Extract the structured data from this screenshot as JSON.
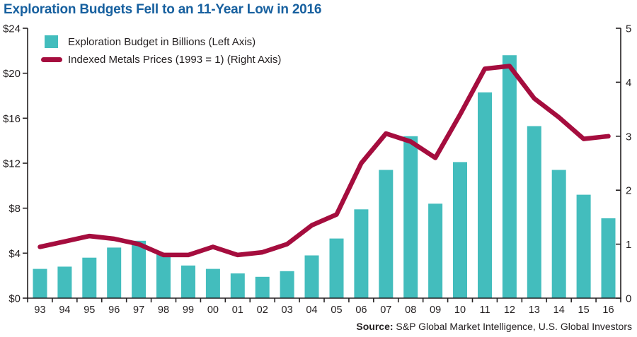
{
  "title": "Exploration Budgets Fell to an 11-Year Low in 2016",
  "legend": {
    "bar_label": "Exploration Budget in Billions (Left Axis)",
    "line_label": "Indexed Metals Prices (1993 = 1) (Right Axis)"
  },
  "source": {
    "label": "Source:",
    "text": " S&P Global Market Intelligence, U.S. Global Investors"
  },
  "colors": {
    "bar": "#43bdbd",
    "line": "#a50d3e",
    "title": "#17609f",
    "axis": "#231f20"
  },
  "chart_data": {
    "type": "bar+line",
    "title": "Exploration Budgets Fell to an 11-Year Low in 2016",
    "categories": [
      "93",
      "94",
      "95",
      "96",
      "97",
      "98",
      "99",
      "00",
      "01",
      "02",
      "03",
      "04",
      "05",
      "06",
      "07",
      "08",
      "09",
      "10",
      "11",
      "12",
      "13",
      "14",
      "15",
      "16"
    ],
    "series": [
      {
        "name": "Exploration Budget in Billions (Left Axis)",
        "type": "bar",
        "axis": "left",
        "values": [
          2.6,
          2.8,
          3.6,
          4.5,
          5.1,
          3.9,
          2.9,
          2.6,
          2.2,
          1.9,
          2.4,
          3.8,
          5.3,
          7.9,
          11.4,
          14.4,
          8.4,
          12.1,
          18.3,
          21.6,
          15.3,
          11.4,
          9.2,
          7.1
        ]
      },
      {
        "name": "Indexed Metals Prices (1993 = 1) (Right Axis)",
        "type": "line",
        "axis": "right",
        "values": [
          0.95,
          1.05,
          1.15,
          1.1,
          1.0,
          0.8,
          0.8,
          0.95,
          0.8,
          0.85,
          1.0,
          1.35,
          1.55,
          2.5,
          3.05,
          2.9,
          2.6,
          3.4,
          4.25,
          4.3,
          3.7,
          3.35,
          2.95,
          3.0
        ]
      }
    ],
    "left_axis": {
      "min": 0,
      "max": 24,
      "ticks": [
        "$0",
        "$4",
        "$8",
        "$12",
        "$16",
        "$20",
        "$24"
      ]
    },
    "right_axis": {
      "min": 0,
      "max": 5,
      "ticks": [
        "0",
        "1",
        "2",
        "3",
        "4",
        "5"
      ]
    },
    "grid": false,
    "legend_position": "top-left-inside"
  }
}
